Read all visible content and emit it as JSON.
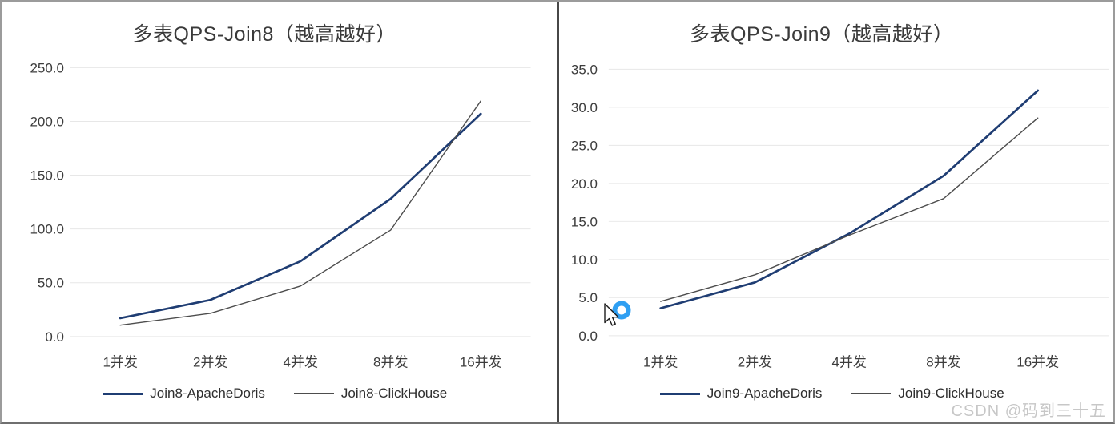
{
  "watermark": "CSDN @码到三十五",
  "cursor": {
    "style": "arrow-pointer-with-busy-ring",
    "ring_color": "#2f9ff2"
  },
  "chart_data": [
    {
      "type": "line",
      "title": "多表QPS-Join8（越高越好）",
      "categories": [
        "1并发",
        "2并发",
        "4并发",
        "8并发",
        "16并发"
      ],
      "series": [
        {
          "name": "Join8-ApacheDoris",
          "color": "#1f3d73",
          "values": [
            17,
            34,
            70,
            128,
            207
          ]
        },
        {
          "name": "Join8-ClickHouse",
          "color": "#4d4d4d",
          "values": [
            10.5,
            21.5,
            47,
            99,
            219
          ]
        }
      ],
      "xlabel": "",
      "ylabel": "",
      "ylim": [
        0,
        250
      ],
      "yticks": [
        "0.0",
        "50.0",
        "100.0",
        "150.0",
        "200.0",
        "250.0"
      ],
      "grid": true,
      "legend_position": "bottom"
    },
    {
      "type": "line",
      "title": "多表QPS-Join9（越高越好）",
      "categories": [
        "1并发",
        "2并发",
        "4并发",
        "8并发",
        "16并发"
      ],
      "series": [
        {
          "name": "Join9-ApacheDoris",
          "color": "#1f3d73",
          "values": [
            3.6,
            7,
            13.4,
            21,
            32.2
          ]
        },
        {
          "name": "Join9-ClickHouse",
          "color": "#4d4d4d",
          "values": [
            4.5,
            8,
            13.2,
            18,
            28.6
          ]
        }
      ],
      "xlabel": "",
      "ylabel": "",
      "ylim": [
        0,
        35
      ],
      "yticks": [
        "0.0",
        "5.0",
        "10.0",
        "15.0",
        "20.0",
        "25.0",
        "30.0",
        "35.0"
      ],
      "grid": true,
      "legend_position": "bottom"
    }
  ]
}
